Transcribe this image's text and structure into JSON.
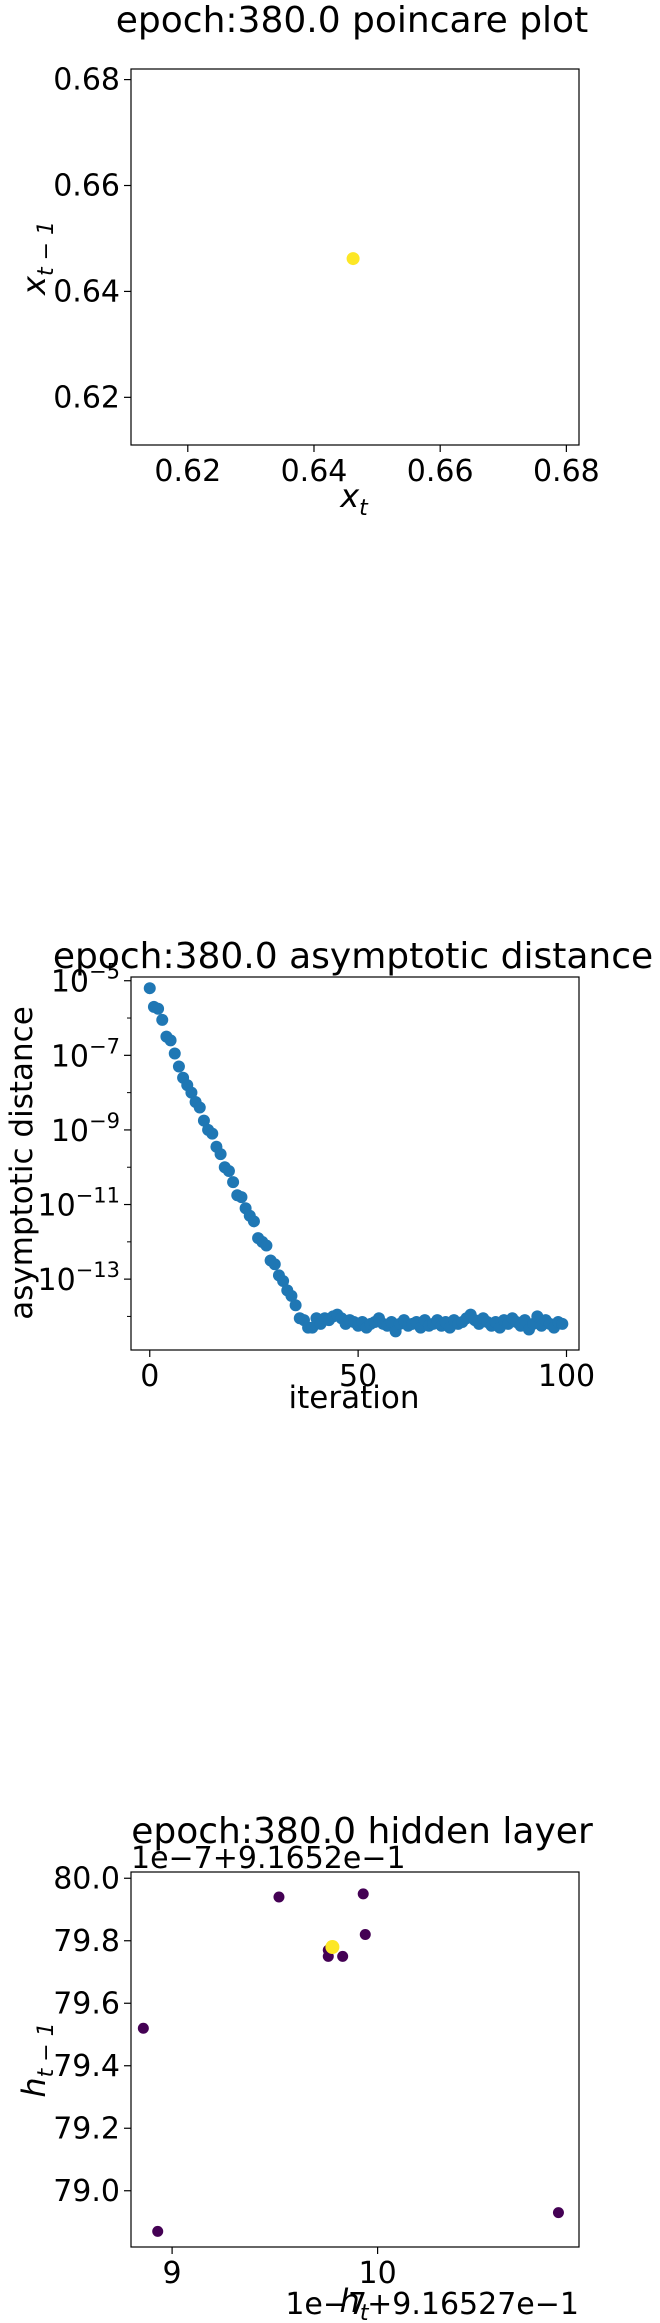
{
  "chart_data": [
    {
      "type": "scatter",
      "title": "epoch:380.0 poincare plot",
      "xlabel": "x",
      "xlabel_sub": "t",
      "ylabel": "x",
      "ylabel_sub": "t − 1",
      "xlim": [
        0.611,
        0.682
      ],
      "ylim": [
        0.611,
        0.682
      ],
      "xticks": [
        0.62,
        0.64,
        0.66,
        0.68
      ],
      "yticks": [
        0.62,
        0.64,
        0.66,
        0.68
      ],
      "xtick_labels": [
        "0.62",
        "0.64",
        "0.66",
        "0.68"
      ],
      "ytick_labels": [
        "0.62",
        "0.64",
        "0.66",
        "0.68"
      ],
      "grid": false,
      "point_color": "#fde725",
      "points": [
        [
          0.6462,
          0.6462
        ]
      ]
    },
    {
      "type": "scatter",
      "title": "epoch:380.0 asymptotic distance",
      "xlabel": "iteration",
      "ylabel": "asymptotic distance",
      "yscale": "log",
      "xlim": [
        -4.5,
        103
      ],
      "ylim_log10": [
        -14.9,
        -4.9
      ],
      "xticks": [
        0,
        50,
        100
      ],
      "xtick_labels": [
        "0",
        "50",
        "100"
      ],
      "yticks_exp": [
        -5,
        -7,
        -9,
        -11,
        -13
      ],
      "ytick_base": "10",
      "ytick_exps": [
        "−5",
        "−7",
        "−9",
        "−11",
        "−13"
      ],
      "grid": false,
      "point_color": "#1f77b4",
      "x": [
        0,
        1,
        2,
        3,
        4,
        5,
        6,
        7,
        8,
        9,
        10,
        11,
        12,
        13,
        14,
        15,
        16,
        17,
        18,
        19,
        20,
        21,
        22,
        23,
        24,
        25,
        26,
        27,
        28,
        29,
        30,
        31,
        32,
        33,
        34,
        35,
        36,
        37,
        38,
        39,
        40,
        41,
        42,
        43,
        44,
        45,
        46,
        47,
        48,
        49,
        50,
        51,
        52,
        53,
        54,
        55,
        56,
        57,
        58,
        59,
        60,
        61,
        62,
        63,
        64,
        65,
        66,
        67,
        68,
        69,
        70,
        71,
        72,
        73,
        74,
        75,
        76,
        77,
        78,
        79,
        80,
        81,
        82,
        83,
        84,
        85,
        86,
        87,
        88,
        89,
        90,
        91,
        92,
        93,
        94,
        95,
        96,
        97,
        98,
        99
      ],
      "log10_y": [
        -5.2,
        -5.7,
        -5.75,
        -6.05,
        -6.5,
        -6.6,
        -6.95,
        -7.3,
        -7.6,
        -7.8,
        -8.0,
        -8.25,
        -8.4,
        -8.75,
        -9.0,
        -9.1,
        -9.45,
        -9.65,
        -10.0,
        -10.1,
        -10.4,
        -10.75,
        -10.8,
        -11.1,
        -11.3,
        -11.45,
        -11.9,
        -12.0,
        -12.1,
        -12.5,
        -12.6,
        -12.9,
        -13.05,
        -13.3,
        -13.45,
        -13.7,
        -14.05,
        -14.1,
        -14.3,
        -14.3,
        -14.05,
        -14.2,
        -14.05,
        -14.1,
        -14.0,
        -13.95,
        -14.05,
        -14.2,
        -14.1,
        -14.15,
        -14.25,
        -14.15,
        -14.3,
        -14.2,
        -14.15,
        -14.05,
        -14.2,
        -14.25,
        -14.15,
        -14.4,
        -14.2,
        -14.1,
        -14.25,
        -14.2,
        -14.15,
        -14.3,
        -14.1,
        -14.25,
        -14.2,
        -14.1,
        -14.25,
        -14.15,
        -14.3,
        -14.1,
        -14.2,
        -14.15,
        -14.05,
        -13.95,
        -14.1,
        -14.2,
        -14.05,
        -14.15,
        -14.25,
        -14.15,
        -14.3,
        -14.1,
        -14.2,
        -14.05,
        -14.15,
        -14.25,
        -14.1,
        -14.35,
        -14.2,
        -14.0,
        -14.25,
        -14.1,
        -14.2,
        -14.3,
        -14.15,
        -14.2
      ],
      "y_unit_note": ""
    },
    {
      "type": "scatter",
      "title": "epoch:380.0 hidden layer",
      "xlabel": "h",
      "xlabel_sub": "t",
      "ylabel": "h",
      "ylabel_sub": "t − 1",
      "x_offset_label": "1e−7+9.16527e−1",
      "y_offset_label": "1e−7+9.1652e−1",
      "xlim": [
        8.8,
        10.98
      ],
      "ylim": [
        78.82,
        80.02
      ],
      "xticks": [
        9,
        10
      ],
      "xtick_labels": [
        "9",
        "10"
      ],
      "yticks": [
        79.0,
        79.2,
        79.4,
        79.6,
        79.8,
        80.0
      ],
      "ytick_labels": [
        "79.0",
        "79.2",
        "79.4",
        "79.6",
        "79.8",
        "80.0"
      ],
      "grid": false,
      "colors": {
        "dark": "#440154",
        "light": "#fde725"
      },
      "points": [
        {
          "x": 8.86,
          "y": 79.52,
          "c": "dark"
        },
        {
          "x": 8.93,
          "y": 78.87,
          "c": "dark"
        },
        {
          "x": 9.52,
          "y": 79.94,
          "c": "dark"
        },
        {
          "x": 9.93,
          "y": 79.95,
          "c": "dark"
        },
        {
          "x": 9.94,
          "y": 79.82,
          "c": "dark"
        },
        {
          "x": 9.76,
          "y": 79.75,
          "c": "dark"
        },
        {
          "x": 9.83,
          "y": 79.75,
          "c": "dark"
        },
        {
          "x": 9.76,
          "y": 79.77,
          "c": "dark"
        },
        {
          "x": 10.88,
          "y": 78.93,
          "c": "dark"
        },
        {
          "x": 9.78,
          "y": 79.78,
          "c": "light"
        }
      ]
    }
  ]
}
